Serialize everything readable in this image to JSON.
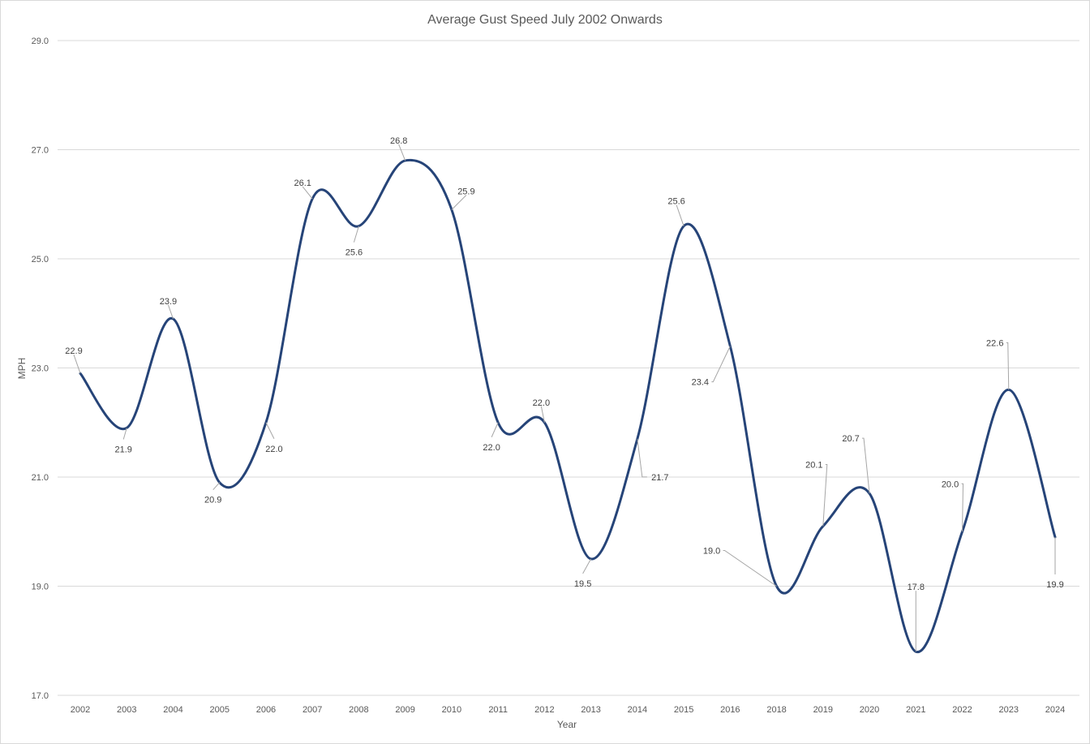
{
  "chart_data": {
    "type": "line",
    "title": "Average Gust Speed July 2002 Onwards",
    "xlabel": "Year",
    "ylabel": "MPH",
    "categories": [
      "2002",
      "2003",
      "2004",
      "2005",
      "2006",
      "2007",
      "2008",
      "2009",
      "2010",
      "2011",
      "2012",
      "2013",
      "2014",
      "2015",
      "2016",
      "2018",
      "2019",
      "2020",
      "2021",
      "2022",
      "2023",
      "2024"
    ],
    "series": [
      {
        "values": [
          22.9,
          21.9,
          23.9,
          20.9,
          22.0,
          26.1,
          25.6,
          26.8,
          25.9,
          22.0,
          22.0,
          19.5,
          21.7,
          25.6,
          23.4,
          19.0,
          20.1,
          20.7,
          17.8,
          20.0,
          22.6,
          19.9
        ],
        "labels": [
          "22.9",
          "21.9",
          "23.9",
          "20.9",
          "22.0",
          "26.1",
          "25.6",
          "26.8",
          "25.9",
          "22.0",
          "22.0",
          "19.5",
          "21.7",
          "25.6",
          "23.4",
          "19.0",
          "20.1",
          "20.7",
          "17.8",
          "20.0",
          "22.6",
          "19.9"
        ],
        "color": "#264478",
        "smooth": true
      }
    ],
    "ylim": [
      17.0,
      29.0
    ],
    "yticks": [
      "17.0",
      "19.0",
      "21.0",
      "23.0",
      "25.0",
      "27.0",
      "29.0"
    ],
    "grid": true,
    "legend": "none"
  }
}
